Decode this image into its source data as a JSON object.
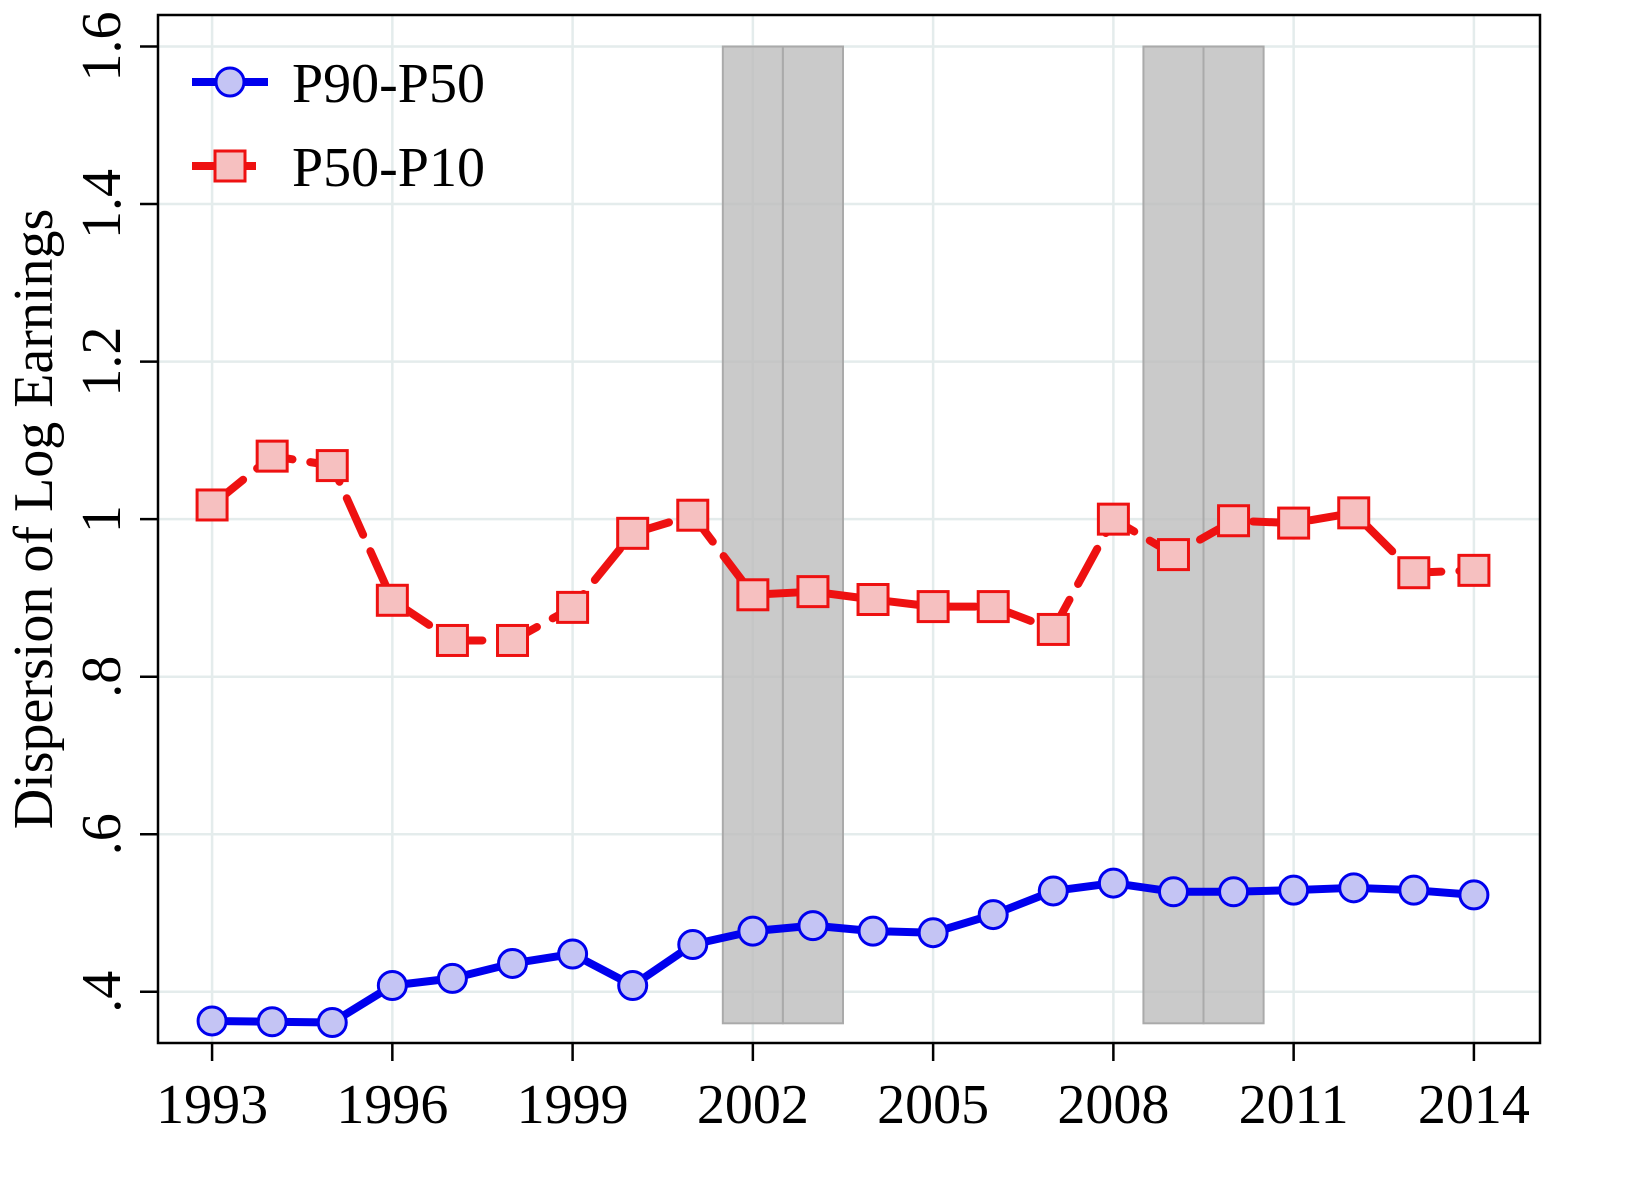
{
  "chart_data": {
    "type": "line",
    "title": "",
    "xlabel": "",
    "ylabel": "Dispersion of Log Earnings",
    "xlim": [
      1992.1,
      2015.1
    ],
    "ylim": [
      0.335,
      1.64
    ],
    "x_ticks": [
      1993,
      1996,
      1999,
      2002,
      2005,
      2008,
      2011,
      2014
    ],
    "x_tick_labels": [
      "1993",
      "1996",
      "1999",
      "2002",
      "2005",
      "2008",
      "2011",
      "2014"
    ],
    "y_ticks": [
      0.4,
      0.6,
      0.8,
      1.0,
      1.2,
      1.4,
      1.6
    ],
    "y_tick_labels": [
      ".4",
      ".6",
      ".8",
      "1",
      "1.2",
      "1.4",
      "1.6"
    ],
    "grid": true,
    "legend_position": "top-left",
    "x": [
      1993,
      1994,
      1995,
      1996,
      1997,
      1998,
      1999,
      2000,
      2001,
      2002,
      2003,
      2004,
      2005,
      2006,
      2007,
      2008,
      2009,
      2010,
      2011,
      2012,
      2013,
      2014
    ],
    "series": [
      {
        "name": "P90-P50",
        "color": "#0000ee",
        "marker_fill": "#c4c4f4",
        "marker": "circle",
        "line_style": "solid",
        "values": [
          0.363,
          0.362,
          0.361,
          0.408,
          0.417,
          0.436,
          0.448,
          0.408,
          0.46,
          0.477,
          0.484,
          0.477,
          0.475,
          0.498,
          0.528,
          0.538,
          0.527,
          0.527,
          0.529,
          0.532,
          0.529,
          0.523
        ]
      },
      {
        "name": "P50-P10",
        "color": "#ee1111",
        "marker_fill": "#f6c0c0",
        "marker": "square",
        "line_style": "dashed",
        "values": [
          1.018,
          1.08,
          1.068,
          0.897,
          0.846,
          0.846,
          0.888,
          0.982,
          1.005,
          0.904,
          0.908,
          0.898,
          0.889,
          0.889,
          0.86,
          1.0,
          0.955,
          0.998,
          0.995,
          1.008,
          0.932,
          0.935
        ]
      }
    ],
    "shaded_regions": [
      {
        "x_start": 2001.5,
        "x_end": 2002.5,
        "color": "#bdbdbd"
      },
      {
        "x_start": 2002.5,
        "x_end": 2003.5,
        "color": "#bdbdbd"
      },
      {
        "x_start": 2008.5,
        "x_end": 2009.5,
        "color": "#bdbdbd"
      },
      {
        "x_start": 2009.5,
        "x_end": 2010.5,
        "color": "#bdbdbd"
      }
    ]
  }
}
